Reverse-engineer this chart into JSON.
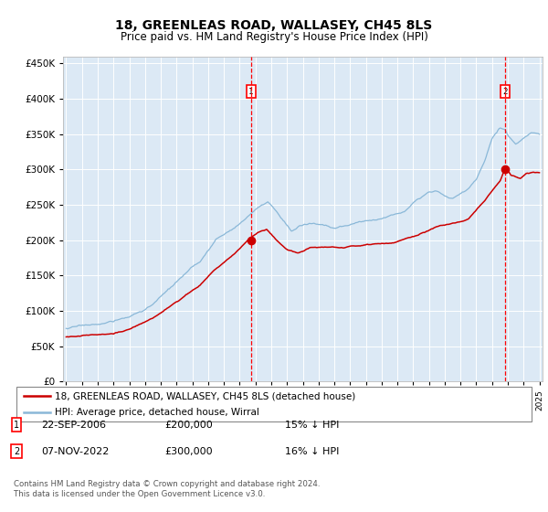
{
  "title": "18, GREENLEAS ROAD, WALLASEY, CH45 8LS",
  "subtitle": "Price paid vs. HM Land Registry's House Price Index (HPI)",
  "title_fontsize": 10,
  "subtitle_fontsize": 8.5,
  "plot_bg_color": "#dce9f5",
  "grid_color": "#c5d8ed",
  "hpi_color": "#8ab8d8",
  "price_color": "#cc0000",
  "ylim": [
    0,
    460000
  ],
  "yticks": [
    0,
    50000,
    100000,
    150000,
    200000,
    250000,
    300000,
    350000,
    400000,
    450000
  ],
  "sale1_date": "22-SEP-2006",
  "sale1_price": 200000,
  "sale1_year": 2006.73,
  "sale2_date": "07-NOV-2022",
  "sale2_price": 300000,
  "sale2_year": 2022.85,
  "sale1_pct": "15% ↓ HPI",
  "sale2_pct": "16% ↓ HPI",
  "legend_line1": "18, GREENLEAS ROAD, WALLASEY, CH45 8LS (detached house)",
  "legend_line2": "HPI: Average price, detached house, Wirral",
  "footnote": "Contains HM Land Registry data © Crown copyright and database right 2024.\nThis data is licensed under the Open Government Licence v3.0.",
  "xstart": 1995,
  "xend": 2025
}
